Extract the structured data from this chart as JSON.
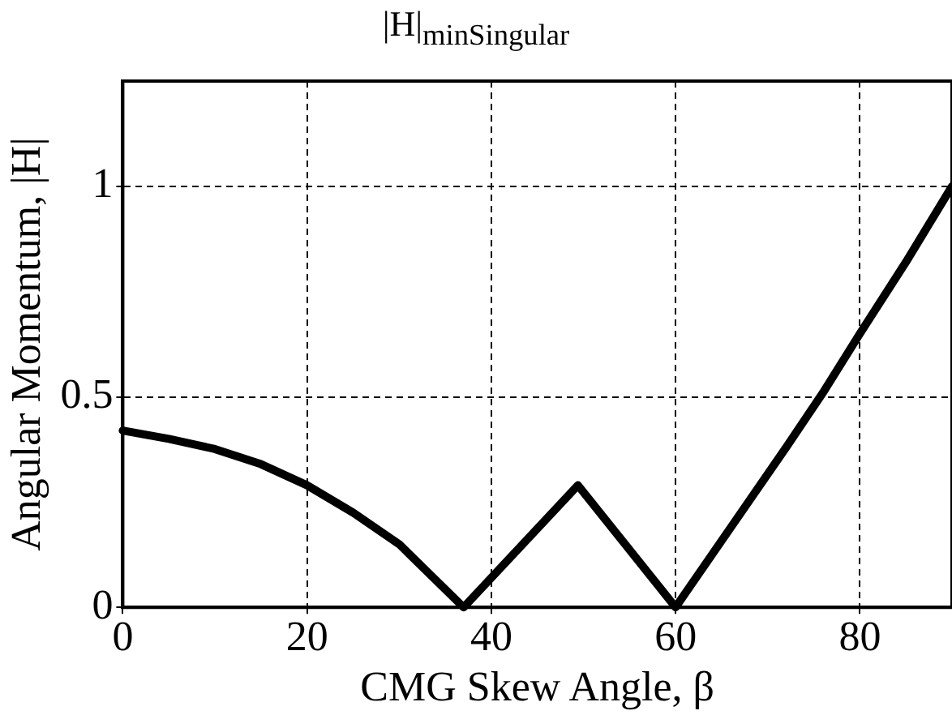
{
  "chart_data": {
    "type": "line",
    "title": "|H|$_{minSingular}$",
    "xlabel": "CMG Skew Angle, β",
    "ylabel": "Angular Momentum, |H|",
    "x": [
      0,
      5,
      10,
      15,
      20,
      25,
      30,
      37,
      49.4,
      60,
      66,
      72,
      76,
      80,
      85,
      90
    ],
    "series": [
      {
        "color": "#000000",
        "values": [
          0.42,
          0.4,
          0.376,
          0.34,
          0.29,
          0.225,
          0.15,
          0,
          0.29,
          0,
          0.19,
          0.38,
          0.51,
          0.65,
          0.82,
          1.0
        ]
      }
    ],
    "xlim": [
      0,
      90
    ],
    "ylim": [
      0,
      1.25
    ],
    "xticks": [
      0,
      20,
      40,
      60,
      80
    ],
    "yticks": [
      0,
      0.5,
      1
    ],
    "grid": true,
    "legend": false,
    "marker": "none",
    "line_style": "solid"
  }
}
